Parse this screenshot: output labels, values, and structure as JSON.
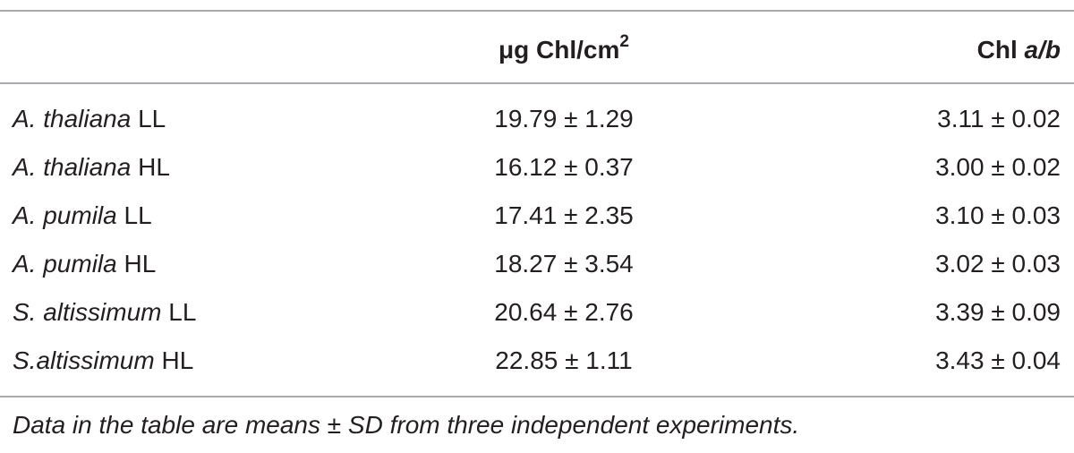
{
  "table": {
    "header": [
      null,
      {
        "text": "μg Chl/cm",
        "sup": "2"
      },
      {
        "text": "Chl",
        "italic": "a/b"
      }
    ],
    "rows": [
      [
        {
          "species": "A. thaliana",
          "light": "LL"
        },
        "19.79 ± 1.29",
        "3.11 ± 0.02"
      ],
      [
        {
          "species": "A. thaliana",
          "light": "HL"
        },
        "16.12 ± 0.37",
        "3.00 ± 0.02"
      ],
      [
        {
          "species": "A. pumila",
          "light": "LL"
        },
        "17.41 ± 2.35",
        "3.10 ± 0.03"
      ],
      [
        {
          "species": "A. pumila",
          "light": "HL"
        },
        "18.27 ± 3.54",
        "3.02 ± 0.03"
      ],
      [
        {
          "species": "S. altissimum",
          "light": "LL"
        },
        "20.64 ± 2.76",
        "3.39 ± 0.09"
      ],
      [
        {
          "species": "S.altissimum",
          "light": "HL"
        },
        "22.85 ± 1.11",
        "3.43 ± 0.04"
      ]
    ],
    "footnote": "Data in the table are means ± SD from three independent experiments."
  }
}
